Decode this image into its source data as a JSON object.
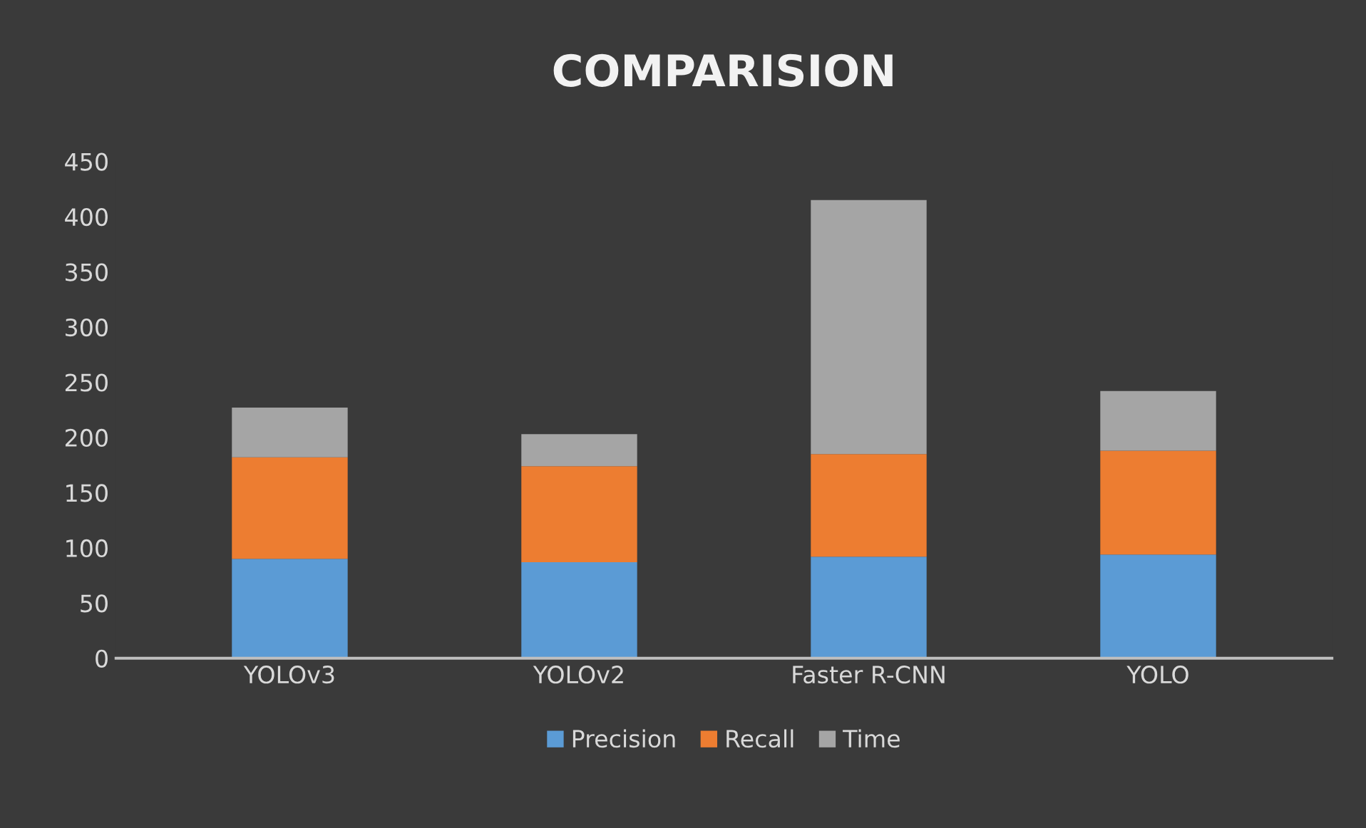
{
  "chart_data": {
    "type": "bar",
    "title": "COMPARISION",
    "categories": [
      "YOLOv3",
      "YOLOv2",
      "Faster R-CNN",
      "YOLO"
    ],
    "stacked": true,
    "series": [
      {
        "name": "Precision",
        "color": "#5b9bd5",
        "values": [
          90,
          87,
          92,
          94
        ]
      },
      {
        "name": "Recall",
        "color": "#ed7d31",
        "values": [
          92,
          87,
          93,
          94
        ]
      },
      {
        "name": "Time",
        "color": "#a5a5a5",
        "values": [
          45,
          29,
          230,
          54
        ]
      }
    ],
    "ylim": [
      0,
      450
    ],
    "yticks": [
      0,
      50,
      100,
      150,
      200,
      250,
      300,
      350,
      400,
      450
    ],
    "grid": false,
    "legend": "bottom"
  }
}
